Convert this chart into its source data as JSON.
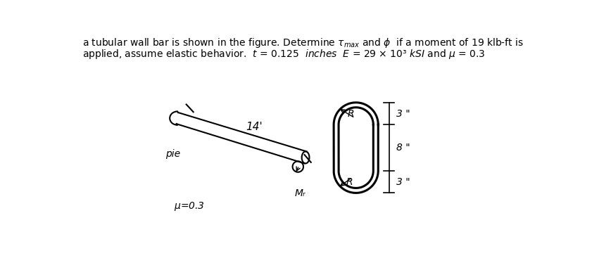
{
  "title_line1": "a tubular wall bar is shown in the figure. Determine $\\tau_{max}$ and $\\phi$  if a moment of 19 klb-ft is",
  "title_line2": "applied, assume elastic behavior.  $t$ = 0.125  $inches$  $E$ = 29 × 10³ $kSI$ and $\\mu$ = 0.3",
  "label_14": "14'",
  "label_pie": "pie",
  "label_mu": "u=0.3",
  "label_Mr": "Mᵣ",
  "label_R_top": "R",
  "label_R_bot": "R",
  "label_3_top": "3 \"",
  "label_8_mid": "8 \"",
  "label_3_bot": "3 \"",
  "bg_color": "#ffffff",
  "text_color": "#000000",
  "bar_lw": 1.5,
  "cs_lw": 2.2,
  "dim_lw": 1.2
}
